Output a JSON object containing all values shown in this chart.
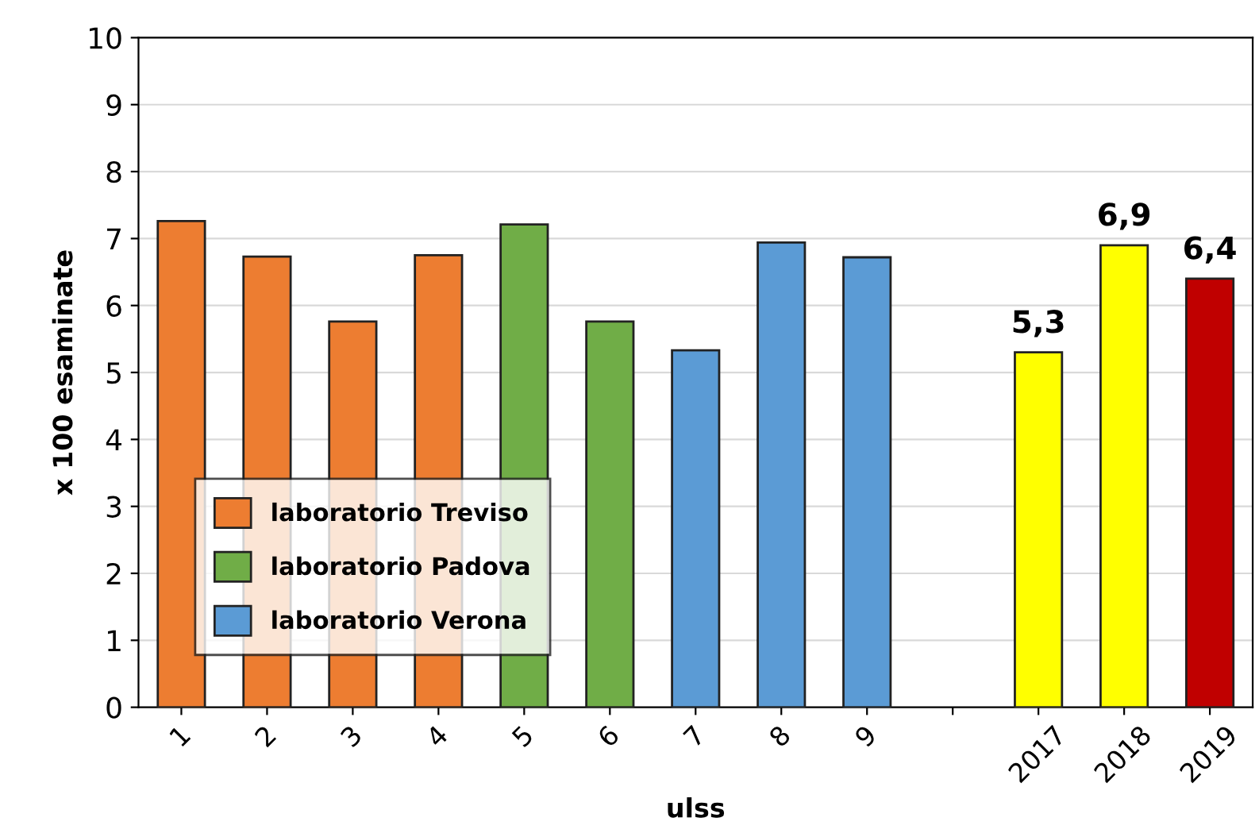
{
  "chart_data": {
    "type": "bar",
    "xlabel": "ulss",
    "ylabel": "x 100 esaminate",
    "categories": [
      "1",
      "2",
      "3",
      "4",
      "5",
      "6",
      "7",
      "8",
      "9",
      null,
      "2017",
      "2018",
      "2019"
    ],
    "series": [
      {
        "name": "laboratorio Treviso",
        "color": "#ed7d31",
        "values": [
          7.26,
          6.73,
          5.76,
          6.75,
          null,
          null,
          null,
          null,
          null,
          null,
          null,
          null,
          null
        ]
      },
      {
        "name": "laboratorio Padova",
        "color": "#70ad47",
        "values": [
          null,
          null,
          null,
          null,
          7.21,
          5.76,
          null,
          null,
          null,
          null,
          null,
          null,
          null
        ]
      },
      {
        "name": "laboratorio Verona",
        "color": "#5b9bd5",
        "values": [
          null,
          null,
          null,
          null,
          null,
          null,
          5.33,
          6.94,
          6.72,
          null,
          null,
          null,
          null
        ]
      },
      {
        "color": "#ffff00",
        "values": [
          null,
          null,
          null,
          null,
          null,
          null,
          null,
          null,
          null,
          null,
          5.3,
          6.9,
          null
        ],
        "value_labels": [
          null,
          null,
          null,
          null,
          null,
          null,
          null,
          null,
          null,
          null,
          "5,3",
          "6,9",
          null
        ]
      },
      {
        "color": "#c00000",
        "values": [
          null,
          null,
          null,
          null,
          null,
          null,
          null,
          null,
          null,
          null,
          null,
          null,
          6.4
        ],
        "value_labels": [
          null,
          null,
          null,
          null,
          null,
          null,
          null,
          null,
          null,
          null,
          null,
          null,
          "6,4"
        ]
      }
    ],
    "ylim": [
      0,
      10
    ],
    "yticks": [
      0,
      1,
      2,
      3,
      4,
      5,
      6,
      7,
      8,
      9,
      10
    ],
    "grid": "y",
    "legend": "bottom left"
  }
}
